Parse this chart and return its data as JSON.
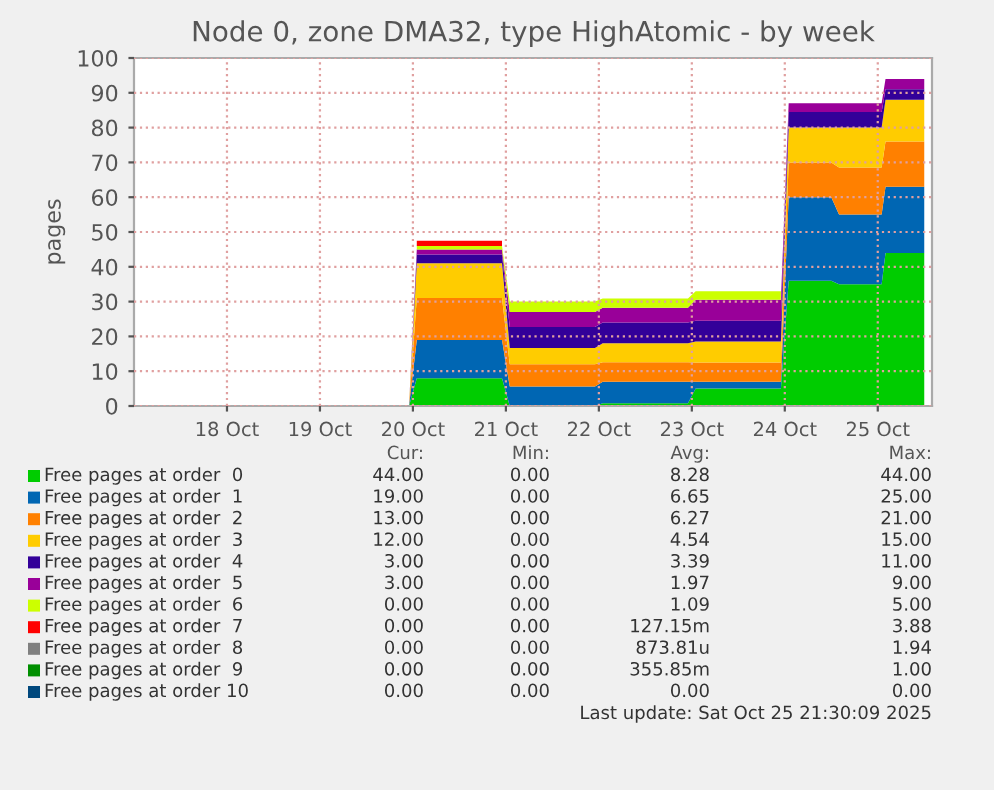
{
  "chart_data": {
    "type": "area",
    "stacked": true,
    "title": "Node 0, zone DMA32, type HighAtomic - by week",
    "ylabel": "pages",
    "x": [
      "2025-10-17T00:00",
      "2025-10-19T23:00",
      "2025-10-20T01:00",
      "2025-10-20T23:00",
      "2025-10-21T01:00",
      "2025-10-21T23:00",
      "2025-10-22T01:00",
      "2025-10-22T23:00",
      "2025-10-23T01:00",
      "2025-10-23T23:00",
      "2025-10-24T01:00",
      "2025-10-24T12:00",
      "2025-10-24T14:00",
      "2025-10-25T01:00",
      "2025-10-25T02:00",
      "2025-10-25T12:00"
    ],
    "series": [
      {
        "name": "Free pages at order  0",
        "color": "#00cc00",
        "values": [
          0,
          0,
          8,
          8,
          0,
          0,
          0.8,
          0.8,
          5,
          5,
          36,
          36,
          35,
          35,
          44,
          44
        ]
      },
      {
        "name": "Free pages at order  1",
        "color": "#0066b3",
        "values": [
          0,
          0,
          11,
          11,
          5.6,
          5.6,
          6.2,
          6.2,
          2,
          2,
          24,
          24,
          20,
          20,
          19,
          19
        ]
      },
      {
        "name": "Free pages at order  2",
        "color": "#ff8000",
        "values": [
          0,
          0,
          12,
          12,
          6.4,
          6.4,
          5.6,
          5.6,
          5.5,
          5.5,
          10,
          10,
          13.5,
          13.5,
          13,
          13
        ]
      },
      {
        "name": "Free pages at order  3",
        "color": "#ffcc00",
        "values": [
          0,
          0,
          10,
          10,
          4.7,
          4.7,
          5.4,
          5.4,
          6,
          6,
          10,
          10,
          11.5,
          11.5,
          12,
          12
        ]
      },
      {
        "name": "Free pages at order  4",
        "color": "#330099",
        "values": [
          0,
          0,
          2.5,
          2.5,
          6,
          6,
          6,
          6,
          6,
          6,
          4.5,
          4.5,
          4.5,
          4.5,
          3,
          3
        ]
      },
      {
        "name": "Free pages at order  5",
        "color": "#990099",
        "values": [
          0,
          0,
          1.5,
          1.5,
          4.3,
          4.3,
          4.2,
          4.2,
          6,
          6,
          2.5,
          2.5,
          2.5,
          2.5,
          3,
          3
        ]
      },
      {
        "name": "Free pages at order  6",
        "color": "#ccff00",
        "values": [
          null,
          null,
          1,
          1,
          3,
          3,
          2.7,
          2.7,
          2.5,
          2.5,
          null,
          null,
          null,
          null,
          null,
          null
        ]
      },
      {
        "name": "Free pages at order  7",
        "color": "#ff0000",
        "values": [
          null,
          null,
          1.5,
          1.5,
          null,
          null,
          null,
          null,
          null,
          null,
          null,
          null,
          null,
          null,
          null,
          null
        ]
      },
      {
        "name": "Free pages at order  8",
        "color": "#808080",
        "values": [
          null,
          null,
          null,
          null,
          null,
          null,
          null,
          null,
          null,
          null,
          null,
          null,
          null,
          null,
          null,
          null
        ]
      },
      {
        "name": "Free pages at order  9",
        "color": "#008f00",
        "values": [
          null,
          null,
          null,
          null,
          null,
          null,
          null,
          null,
          null,
          null,
          null,
          null,
          null,
          null,
          null,
          null
        ]
      },
      {
        "name": "Free pages at order 10",
        "color": "#00487d",
        "values": [
          null,
          null,
          null,
          null,
          null,
          null,
          null,
          null,
          null,
          null,
          null,
          null,
          null,
          null,
          null,
          null
        ]
      }
    ],
    "xlim": [
      "2025-10-17T00:00",
      "2025-10-25T14:00"
    ],
    "xticks": [
      {
        "value": "2025-10-18",
        "label": "18 Oct"
      },
      {
        "value": "2025-10-19",
        "label": "19 Oct"
      },
      {
        "value": "2025-10-20",
        "label": "20 Oct"
      },
      {
        "value": "2025-10-21",
        "label": "21 Oct"
      },
      {
        "value": "2025-10-22",
        "label": "22 Oct"
      },
      {
        "value": "2025-10-23",
        "label": "23 Oct"
      },
      {
        "value": "2025-10-24",
        "label": "24 Oct"
      },
      {
        "value": "2025-10-25",
        "label": "25 Oct"
      }
    ],
    "ylim": [
      0,
      100
    ],
    "yticks": [
      0,
      10,
      20,
      30,
      40,
      50,
      60,
      70,
      80,
      90,
      100
    ],
    "grid": true,
    "legend": "bottom",
    "annotations": [
      "Cur:",
      "Min:",
      "Avg:",
      "Max:",
      "44.00",
      "0.00",
      "8.28",
      "44.00",
      "19.00",
      "0.00",
      "6.65",
      "25.00",
      "13.00",
      "0.00",
      "6.27",
      "21.00",
      "12.00",
      "0.00",
      "4.54",
      "15.00",
      "3.00",
      "0.00",
      "3.39",
      "11.00",
      "3.00",
      "0.00",
      "1.97",
      "9.00",
      "0.00",
      "0.00",
      "1.09",
      "5.00",
      "0.00",
      "0.00",
      "127.15m",
      "3.88",
      "0.00",
      "0.00",
      "873.81u",
      "1.94",
      "0.00",
      "0.00",
      "355.85m",
      "1.00",
      "0.00",
      "0.00",
      "0.00",
      "0.00",
      "Last update: Sat Oct 25 21:30:09 2025"
    ]
  }
}
